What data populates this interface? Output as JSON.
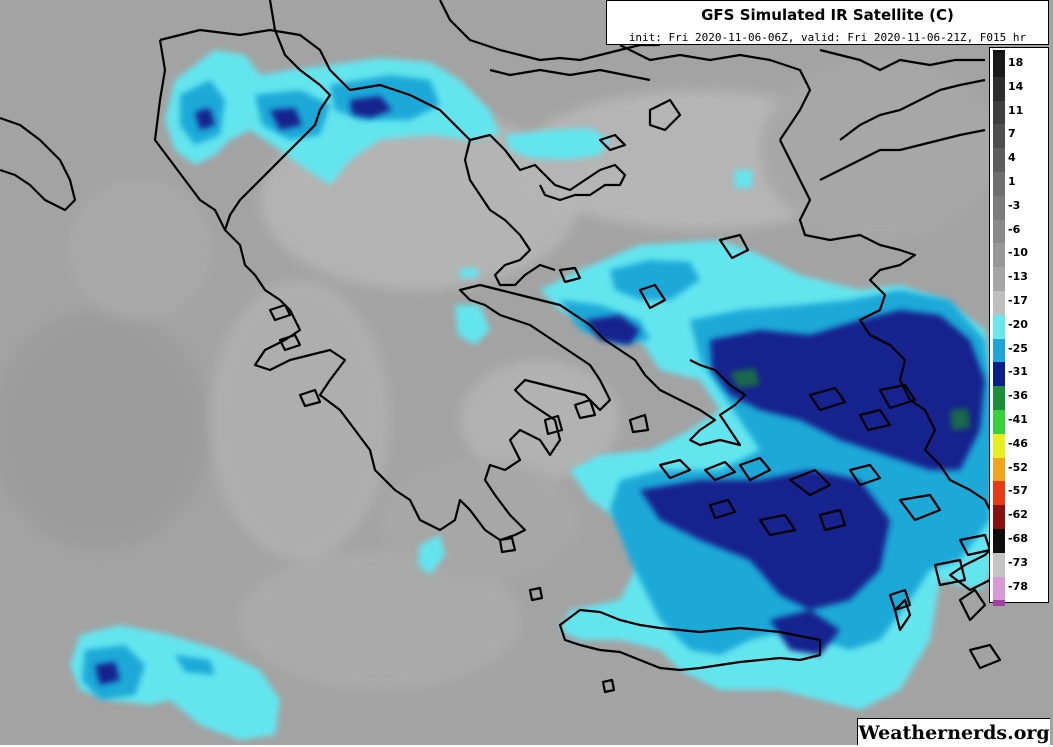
{
  "title": "GFS Simulated IR Satellite (C)",
  "subtitle": "init: Fri 2020-11-06-06Z, valid: Fri 2020-11-06-21Z, F015 hr",
  "watermark": "Weathernerds.org",
  "colorbar": {
    "levels": [
      {
        "label": "18",
        "color": "#1a1a1a"
      },
      {
        "label": "14",
        "color": "#2e2e2e"
      },
      {
        "label": "11",
        "color": "#3e3e3e"
      },
      {
        "label": "7",
        "color": "#4e4e4e"
      },
      {
        "label": "4",
        "color": "#5e5e5e"
      },
      {
        "label": "1",
        "color": "#6e6e6e"
      },
      {
        "label": "-3",
        "color": "#7c7c7c"
      },
      {
        "label": "-6",
        "color": "#8a8a8a"
      },
      {
        "label": "-10",
        "color": "#989898"
      },
      {
        "label": "-13",
        "color": "#a6a6a6"
      },
      {
        "label": "-17",
        "color": "#bfbfbf"
      },
      {
        "label": "-20",
        "color": "#66e8ec"
      },
      {
        "label": "-25",
        "color": "#1aa7d6"
      },
      {
        "label": "-31",
        "color": "#0b1f8c"
      },
      {
        "label": "-36",
        "color": "#1a8f3a"
      },
      {
        "label": "-41",
        "color": "#37d13a"
      },
      {
        "label": "-46",
        "color": "#e8ee1e"
      },
      {
        "label": "-52",
        "color": "#f2a41c"
      },
      {
        "label": "-57",
        "color": "#e83b14"
      },
      {
        "label": "-62",
        "color": "#8a1010"
      },
      {
        "label": "-68",
        "color": "#0e0e0e"
      },
      {
        "label": "-73",
        "color": "#c4c4c4"
      },
      {
        "label": "-78",
        "color": "#d89ad8"
      }
    ],
    "extra_top": "#111111",
    "extra_bottom": "#a040a0"
  },
  "colors": {
    "background_gray": "#a2a2a2",
    "light_gray": "#b4b4b4",
    "cloud_light": "#63e5ee",
    "cloud_mid": "#1fa9d8",
    "cloud_dark": "#13238e",
    "cloud_core": "#1a7a3a",
    "coastline": "#000000"
  }
}
